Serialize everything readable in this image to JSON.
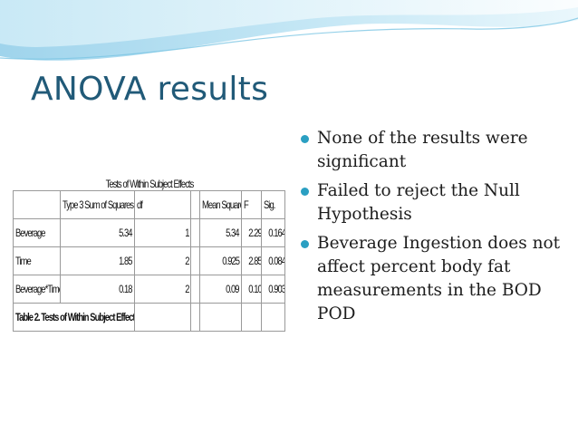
{
  "slide": {
    "title": "ANOVA results",
    "colors": {
      "title": "#215a78",
      "bullet": "#2a9fc2",
      "wave": "#9fd4ec"
    }
  },
  "table": {
    "title": "Tests of Within Subject Effects",
    "headers": [
      "",
      "Type 3 Sum of Squares",
      "df",
      "",
      "Mean Square",
      "F",
      "Sig."
    ],
    "rows": [
      [
        "Beverage",
        "5.34",
        "1",
        "",
        "5.34",
        "2.296",
        "0.164"
      ],
      [
        "Time",
        "1.85",
        "2",
        "",
        "0.925",
        "2.857",
        "0.084"
      ],
      [
        "Beverage*Time",
        "0.18",
        "2",
        "",
        "0.09",
        "0.102",
        "0.903"
      ]
    ],
    "caption": "Table 2. Tests of Within Subject Effects"
  },
  "bullets": [
    "None of the results were significant",
    "Failed to reject the Null Hypothesis",
    "Beverage Ingestion does not affect percent body fat measurements in the BOD POD"
  ]
}
